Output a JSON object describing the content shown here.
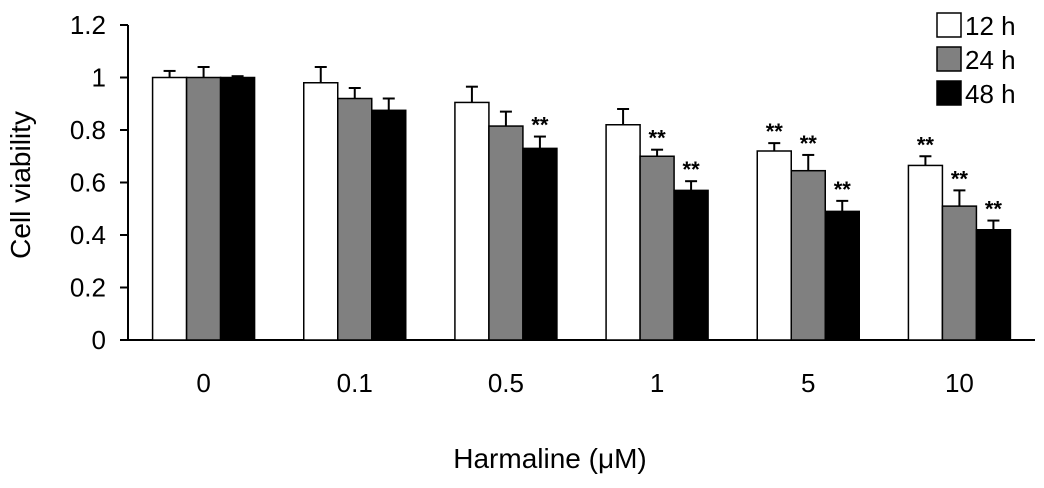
{
  "chart_data": {
    "type": "bar",
    "title": "",
    "xlabel": "Harmaline (μM)",
    "ylabel": "Cell viability",
    "ylim": [
      0,
      1.2
    ],
    "yticks": [
      "0",
      "0.2",
      "0.4",
      "0.6",
      "0.8",
      "1",
      "1.2"
    ],
    "categories": [
      "0",
      "0.1",
      "0.5",
      "1",
      "5",
      "10"
    ],
    "grid": false,
    "legend_position": "top-right",
    "series": [
      {
        "name": "12 h",
        "color": "#ffffff",
        "values": [
          1.0,
          0.98,
          0.905,
          0.82,
          0.72,
          0.665
        ],
        "errors": [
          0.025,
          0.06,
          0.06,
          0.06,
          0.03,
          0.035
        ],
        "significance": [
          "",
          "",
          "",
          "",
          "**",
          "**"
        ]
      },
      {
        "name": "24 h",
        "color": "#808080",
        "values": [
          1.0,
          0.92,
          0.815,
          0.7,
          0.645,
          0.51
        ],
        "errors": [
          0.04,
          0.04,
          0.055,
          0.025,
          0.06,
          0.06
        ],
        "significance": [
          "",
          "",
          "",
          "**",
          "**",
          "**"
        ]
      },
      {
        "name": "48 h",
        "color": "#000000",
        "values": [
          1.0,
          0.875,
          0.73,
          0.57,
          0.49,
          0.42
        ],
        "errors": [
          0.005,
          0.045,
          0.045,
          0.035,
          0.04,
          0.035
        ],
        "significance": [
          "",
          "",
          "**",
          "**",
          "**",
          "**"
        ]
      }
    ]
  }
}
